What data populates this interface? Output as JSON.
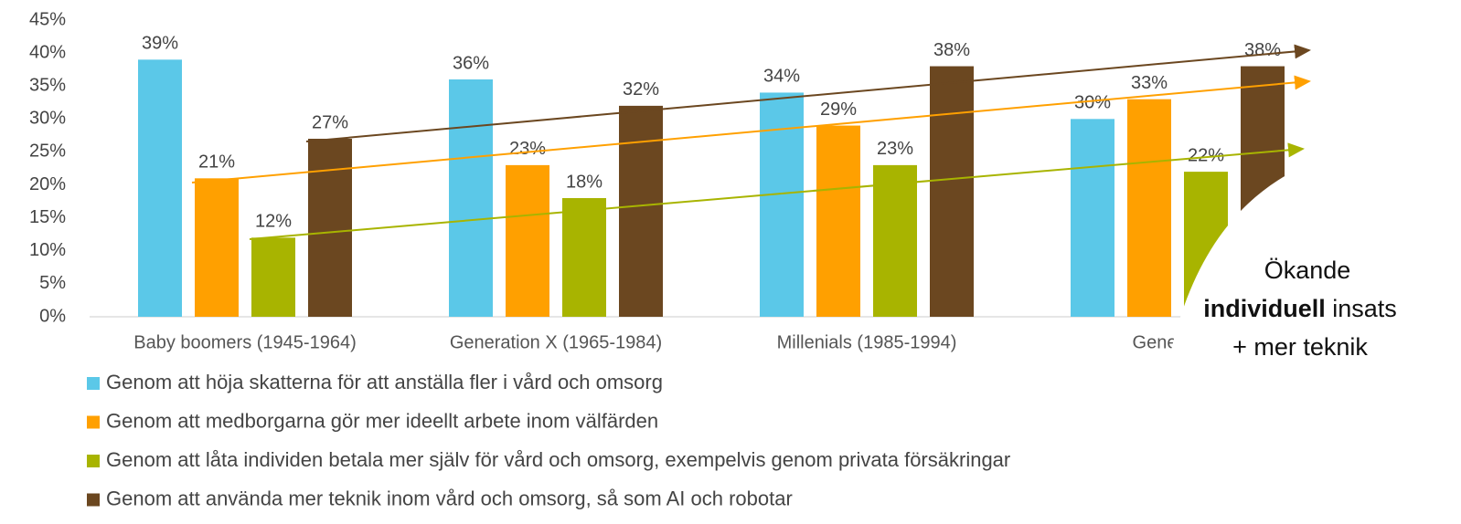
{
  "chart_data": {
    "type": "bar",
    "categories": [
      "Baby boomers (1945-1964)",
      "Generation X (1965-1984)",
      "Millenials (1985-1994)",
      "Generation"
    ],
    "series": [
      {
        "name": "Genom att höja skatterna för att anställa fler i vård och omsorg",
        "color": "#5bc8e8",
        "values": [
          39,
          36,
          34,
          30
        ],
        "value_labels": [
          "39%",
          "36%",
          "34%",
          "30%"
        ]
      },
      {
        "name": "Genom att medborgarna gör mer ideellt arbete inom välfärden",
        "color": "#ffa000",
        "values": [
          21,
          23,
          29,
          33
        ],
        "value_labels": [
          "21%",
          "23%",
          "29%",
          "33%"
        ]
      },
      {
        "name": "Genom att låta individen betala mer själv för vård och omsorg, exempelvis genom privata försäkringar",
        "color": "#a8b400",
        "values": [
          12,
          18,
          23,
          22
        ],
        "value_labels": [
          "12%",
          "18%",
          "23%",
          "22%"
        ]
      },
      {
        "name": "Genom att använda mer teknik inom vård och omsorg, så som AI och robotar",
        "color": "#6b4720",
        "values": [
          27,
          32,
          38,
          38
        ],
        "value_labels": [
          "27%",
          "32%",
          "38%",
          "38%"
        ]
      }
    ],
    "ylim": [
      0,
      45
    ],
    "yticks": [
      {
        "value": 0,
        "label": "0%"
      },
      {
        "value": 5,
        "label": "5%"
      },
      {
        "value": 10,
        "label": "10%"
      },
      {
        "value": 15,
        "label": "15%"
      },
      {
        "value": 20,
        "label": "20%"
      },
      {
        "value": 25,
        "label": "25%"
      },
      {
        "value": 30,
        "label": "30%"
      },
      {
        "value": 35,
        "label": "35%"
      },
      {
        "value": 40,
        "label": "40%"
      },
      {
        "value": 45,
        "label": "45%"
      }
    ],
    "annotation": {
      "line1": "Ökande",
      "bold": "individuell",
      "rest": "insats",
      "line3": "+ mer teknik"
    }
  }
}
